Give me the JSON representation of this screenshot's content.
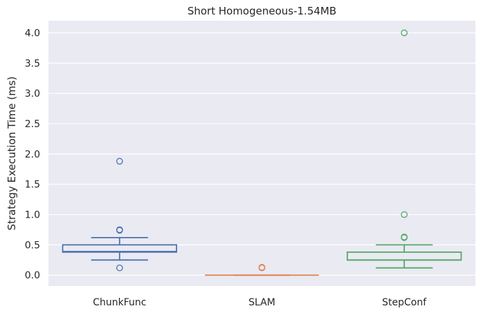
{
  "chart_data": {
    "type": "box",
    "title": "Short Homogeneous-1.54MB",
    "xlabel": "",
    "ylabel": "Strategy Execution Time (ms)",
    "ylim": [
      -0.18,
      4.2
    ],
    "yticks": [
      "0.0",
      "0.5",
      "1.0",
      "1.5",
      "2.0",
      "2.5",
      "3.0",
      "3.5",
      "4.0"
    ],
    "grid": true,
    "background": "#eaeaf2",
    "categories": [
      "ChunkFunc",
      "SLAM",
      "StepConf"
    ],
    "series": [
      {
        "category": "ChunkFunc",
        "color": "#4c72b0",
        "whisker_low": 0.25,
        "q1": 0.38,
        "median": 0.39,
        "q3": 0.5,
        "whisker_high": 0.62,
        "outliers": [
          0.12,
          0.74,
          0.75,
          1.88
        ]
      },
      {
        "category": "SLAM",
        "color": "#dd8452",
        "whisker_low": 0.0,
        "q1": 0.0,
        "median": 0.0,
        "q3": 0.0,
        "whisker_high": 0.0,
        "outliers": [
          0.12,
          0.13
        ]
      },
      {
        "category": "StepConf",
        "color": "#55a868",
        "whisker_low": 0.12,
        "q1": 0.25,
        "median": 0.25,
        "q3": 0.38,
        "whisker_high": 0.5,
        "outliers": [
          0.62,
          0.63,
          1.0,
          4.0
        ]
      }
    ]
  }
}
